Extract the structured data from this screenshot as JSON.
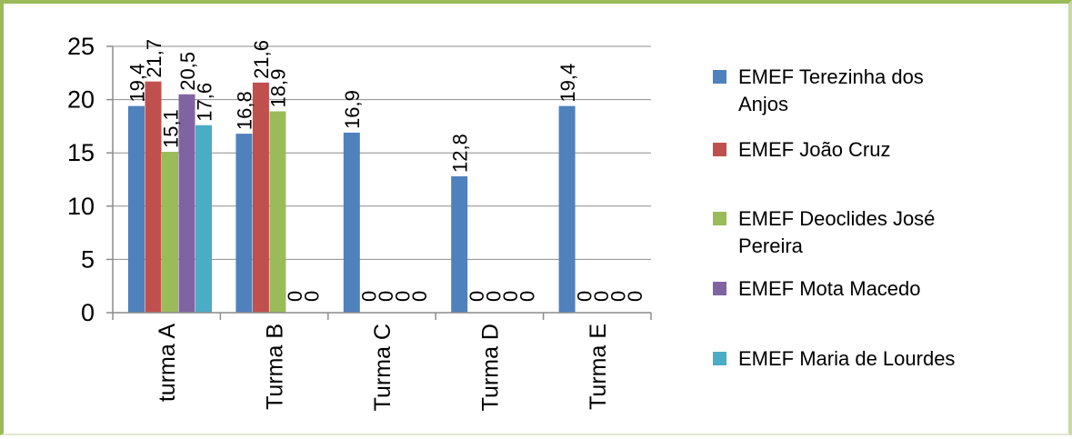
{
  "chart_data": {
    "type": "bar",
    "categories": [
      "turma A",
      "Turma B",
      "Turma C",
      "Turma D",
      "Turma E"
    ],
    "series": [
      {
        "name": "EMEF Terezinha dos Anjos",
        "color": "#4f81bd",
        "values": [
          19.4,
          16.8,
          16.9,
          12.8,
          19.4
        ]
      },
      {
        "name": "EMEF João Cruz",
        "color": "#c0504d",
        "values": [
          21.7,
          21.6,
          0,
          0,
          0
        ]
      },
      {
        "name": "EMEF Deoclides José Pereira",
        "color": "#9bbb59",
        "values": [
          15.1,
          18.9,
          0,
          0,
          0
        ]
      },
      {
        "name": "EMEF Mota Macedo",
        "color": "#8064a2",
        "values": [
          20.5,
          null,
          0,
          0,
          0
        ]
      },
      {
        "name": "EMEF Maria de Lourdes",
        "color": "#4bacc6",
        "values": [
          17.6,
          null,
          0,
          0,
          0
        ]
      }
    ],
    "data_labels": [
      [
        "19,4",
        "16,8",
        "16,9",
        "12,8",
        "19,4"
      ],
      [
        "21,7",
        "21,6",
        "0",
        "0",
        "0"
      ],
      [
        "15,1",
        "18,9",
        "0",
        "0",
        "0"
      ],
      [
        "20,5",
        "0",
        "0",
        "0",
        "0"
      ],
      [
        "17,6",
        "0",
        "0",
        "0",
        "0"
      ]
    ],
    "y_ticks": [
      "0",
      "5",
      "10",
      "15",
      "20",
      "25"
    ],
    "ylim": [
      0,
      25
    ],
    "grid": true,
    "legend_position": "right",
    "title": "",
    "xlabel": "",
    "ylabel": ""
  }
}
